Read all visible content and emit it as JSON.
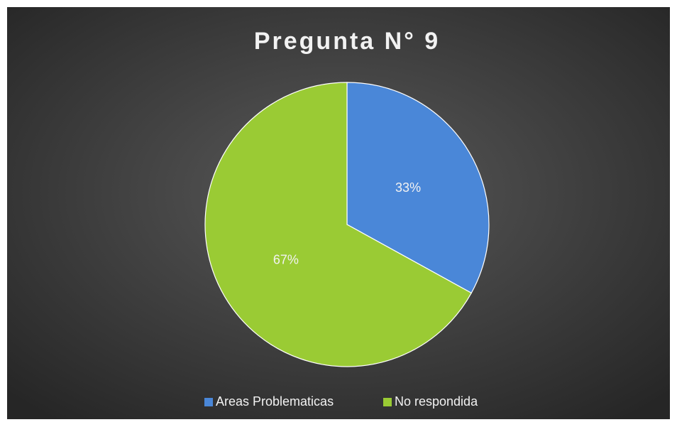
{
  "chart_data": {
    "type": "pie",
    "title": "Pregunta N° 9",
    "categories": [
      "Areas Problematicas",
      "No respondida"
    ],
    "values": [
      33,
      67
    ],
    "value_labels": [
      "33%",
      "67%"
    ],
    "colors": [
      "#4a87d8",
      "#9acb34"
    ],
    "legend": "bottom"
  }
}
